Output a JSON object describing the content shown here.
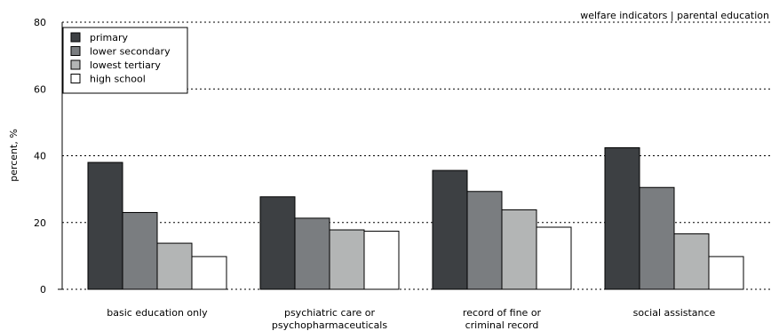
{
  "chart_data": {
    "type": "bar",
    "title": "welfare indicators | parental education",
    "ylabel": "percent, %",
    "xlabel": "",
    "ylim": [
      0,
      80
    ],
    "yticks": [
      0,
      20,
      40,
      60,
      80
    ],
    "grid": "horizontal dashed",
    "legend_position": "top-left",
    "categories": [
      [
        "basic education only"
      ],
      [
        "psychiatric care or",
        "psychopharmaceuticals"
      ],
      [
        "record of fine or",
        "criminal record"
      ],
      [
        "social assistance"
      ]
    ],
    "series": [
      {
        "name": "primary",
        "color": "#3d4043",
        "values": [
          38.0,
          27.7,
          35.6,
          42.4
        ]
      },
      {
        "name": "lower secondary",
        "color": "#7a7d80",
        "values": [
          23.0,
          21.3,
          29.3,
          30.5
        ]
      },
      {
        "name": "lowest tertiary",
        "color": "#b3b5b5",
        "values": [
          13.8,
          17.8,
          23.8,
          16.6
        ]
      },
      {
        "name": "high school",
        "color": "#ffffff",
        "values": [
          9.8,
          17.4,
          18.6,
          9.8
        ]
      }
    ]
  }
}
